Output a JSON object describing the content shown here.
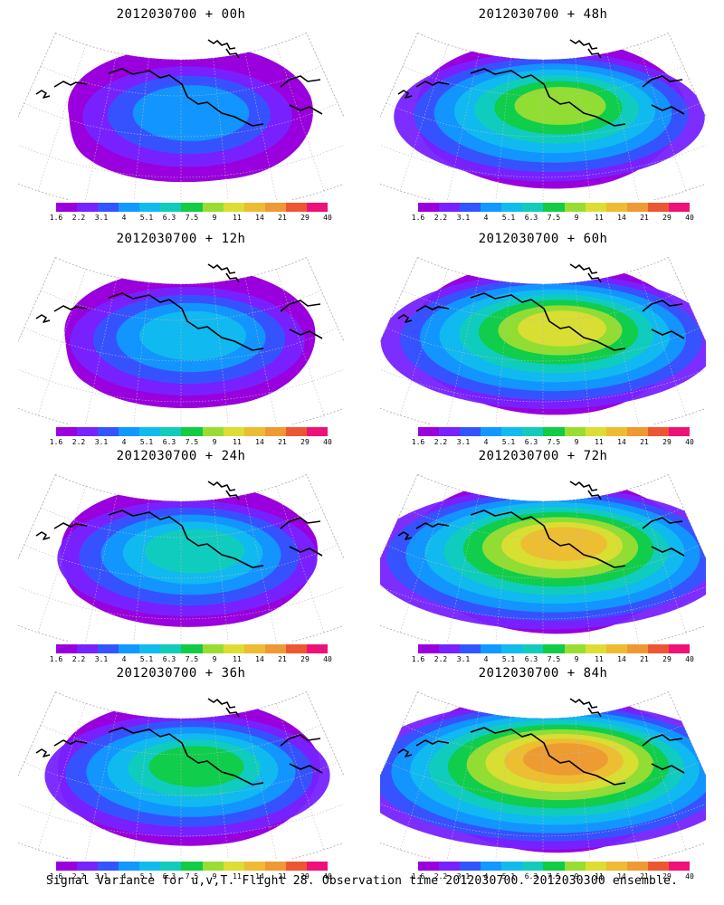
{
  "caption": "Signal Variance for u,v,T. Flight 28. Observation time 2012030700. 2012030300 ensemble.",
  "colorbar": {
    "ticks": [
      "1.6",
      "2.2",
      "3.1",
      "4",
      "5.1",
      "6.3",
      "7.5",
      "9",
      "11",
      "14",
      "21",
      "29",
      "40"
    ],
    "colors": [
      "#9900dd",
      "#7722ff",
      "#3355ff",
      "#1199ff",
      "#11bbee",
      "#11ccbb",
      "#11cc44",
      "#99dd33",
      "#dddd33",
      "#eebb33",
      "#ee9933",
      "#ee5533",
      "#ee1177"
    ]
  },
  "panels": [
    {
      "title": "2012030700 + 00h",
      "level": 1
    },
    {
      "title": "2012030700 + 48h",
      "level": 5
    },
    {
      "title": "2012030700 + 12h",
      "level": 2
    },
    {
      "title": "2012030700 + 60h",
      "level": 6
    },
    {
      "title": "2012030700 + 24h",
      "level": 3
    },
    {
      "title": "2012030700 + 72h",
      "level": 7
    },
    {
      "title": "2012030700 + 36h",
      "level": 4
    },
    {
      "title": "2012030700 + 84h",
      "level": 8
    }
  ]
}
